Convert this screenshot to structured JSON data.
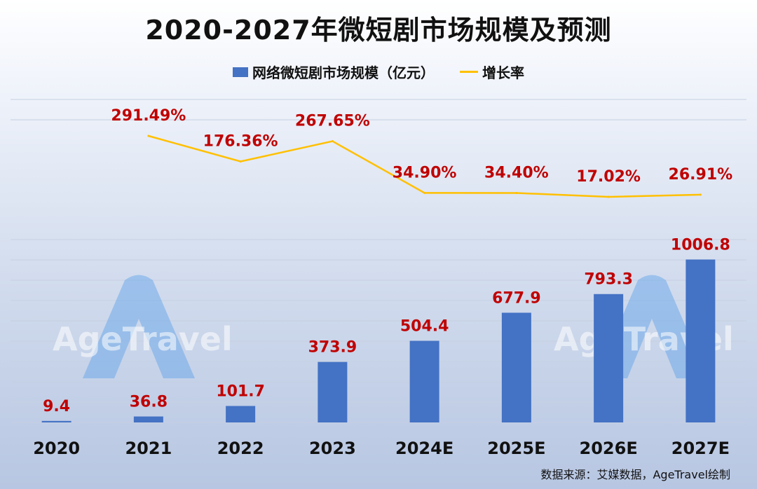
{
  "chart_data": {
    "type": "bar",
    "title": "2020-2027年微短剧市场规模及预测",
    "categories": [
      "2020",
      "2021",
      "2022",
      "2023",
      "2024E",
      "2025E",
      "2026E",
      "2027E"
    ],
    "series": [
      {
        "name": "网络微短剧市场规模（亿元）",
        "type": "bar",
        "values": [
          9.4,
          36.8,
          101.7,
          373.9,
          504.4,
          677.9,
          793.3,
          1006.8
        ],
        "labels": [
          "9.4",
          "36.8",
          "101.7",
          "373.9",
          "504.4",
          "677.9",
          "793.3",
          "1006.8"
        ]
      },
      {
        "name": "增长率",
        "type": "line",
        "values": [
          291.49,
          176.36,
          267.65,
          34.9,
          34.4,
          17.02,
          26.91
        ],
        "x": [
          "2021",
          "2022",
          "2023",
          "2024E",
          "2025E",
          "2026E",
          "2027E"
        ],
        "labels": [
          "291.49%",
          "176.36%",
          "267.65%",
          "34.90%",
          "34.40%",
          "17.02%",
          "26.91%"
        ]
      }
    ],
    "ylim_bar": [
      0,
      1000
    ],
    "grid": true,
    "legend_position": "top-center"
  },
  "colors": {
    "bar": "#4472C4",
    "line": "#FFC000",
    "data_label": "#C00000",
    "text": "#111111",
    "grid": "#c6d0e2"
  },
  "watermark": "AgeTravel",
  "source": "数据来源：艾媒数据，AgeTravel绘制"
}
